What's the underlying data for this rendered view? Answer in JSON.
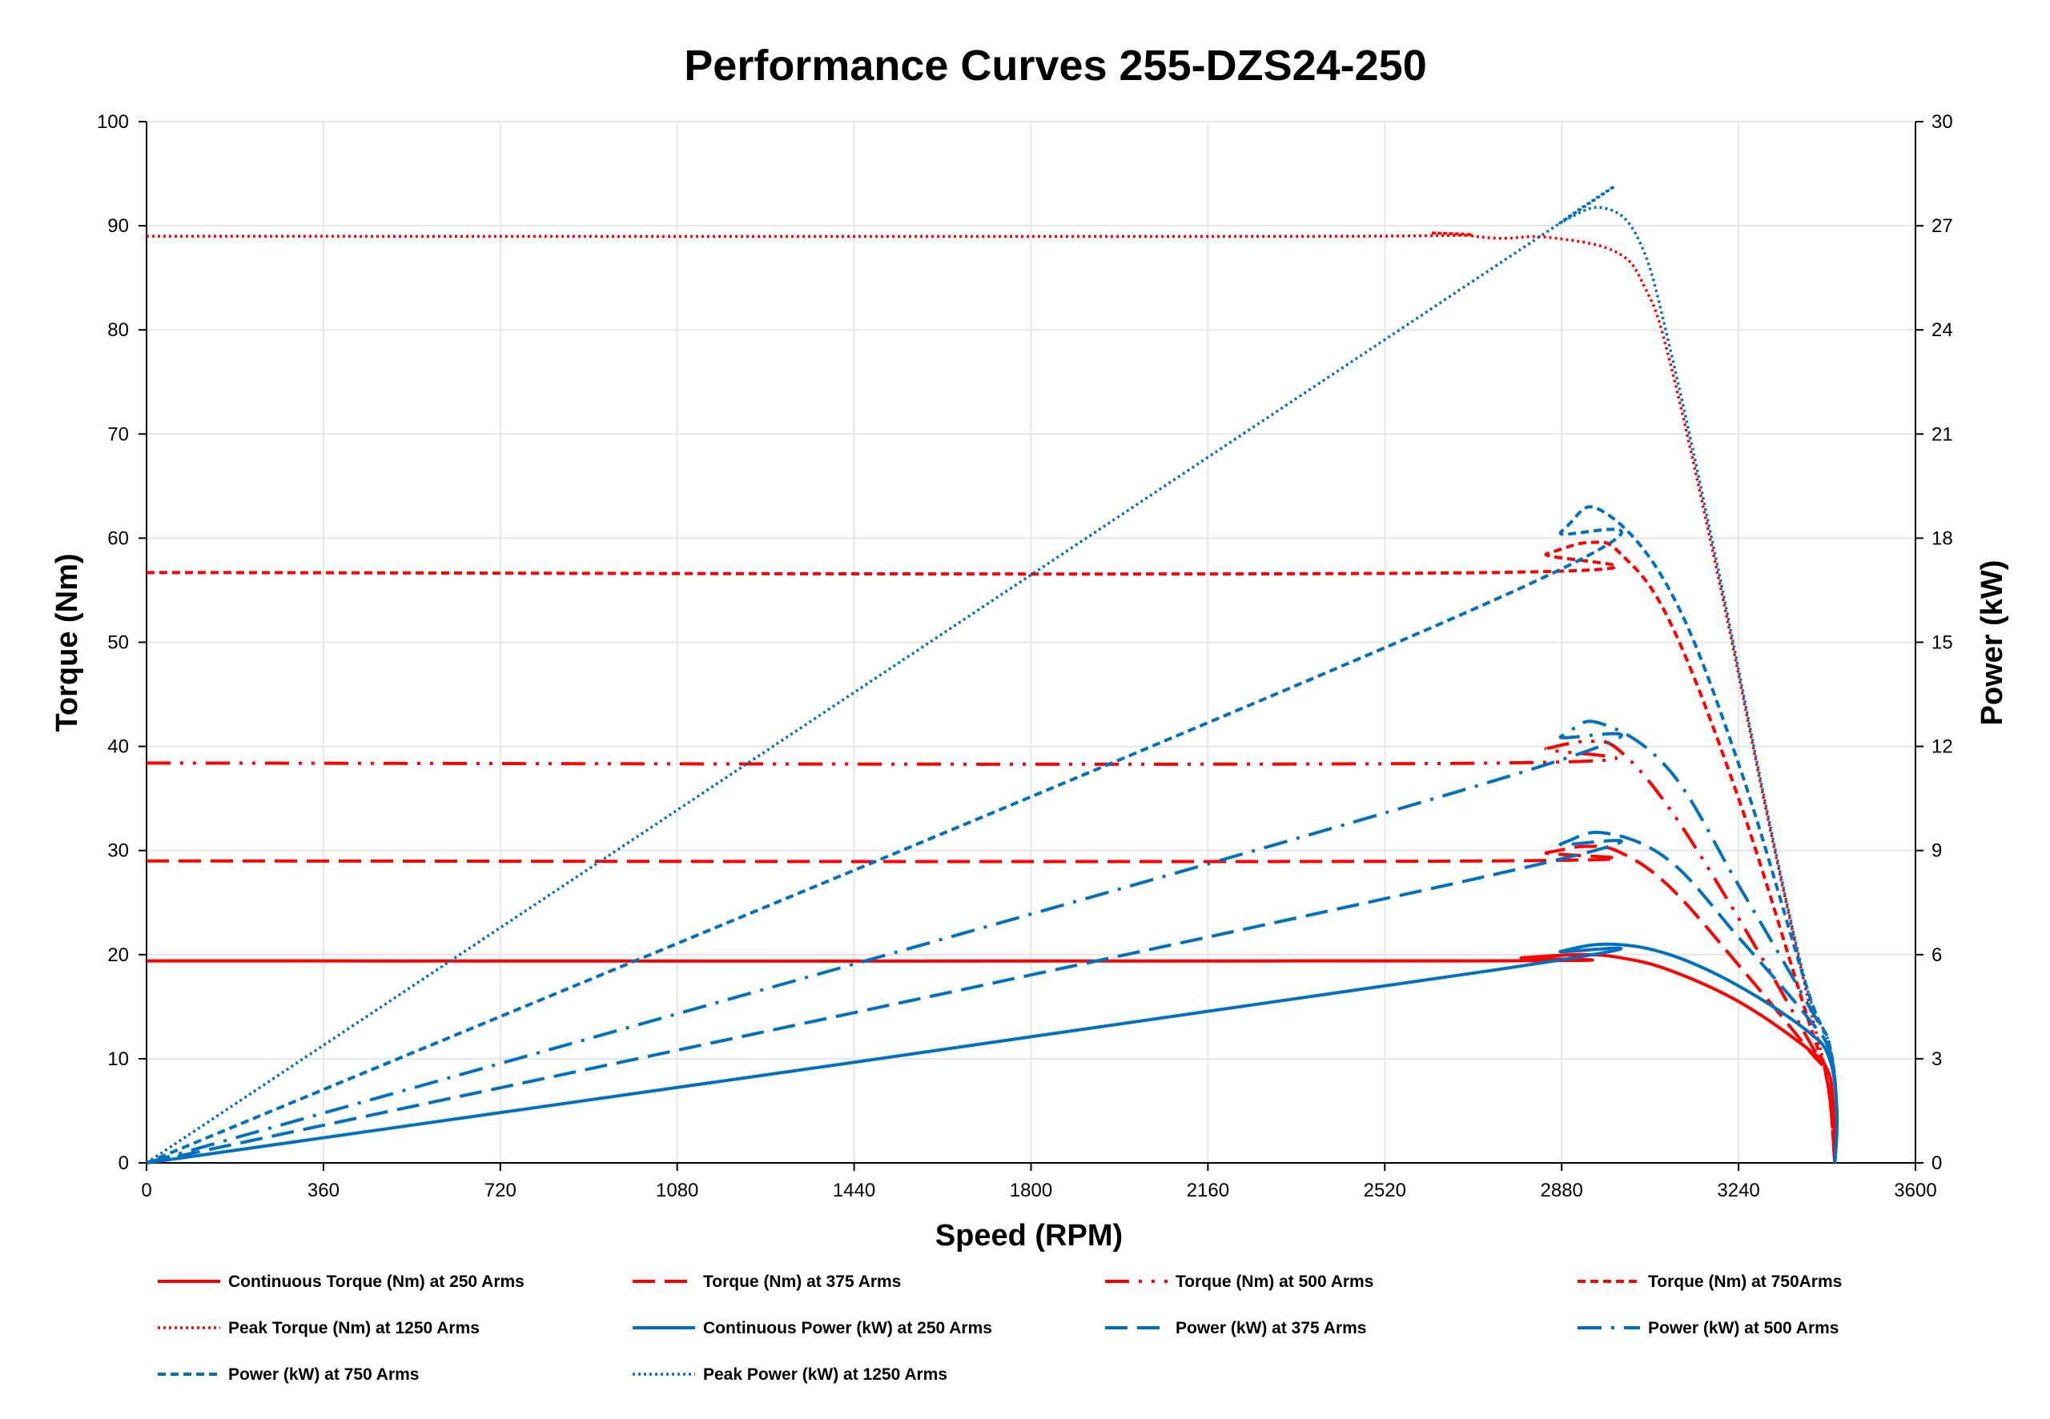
{
  "chart_data": {
    "type": "line",
    "title": "Performance Curves 255-DZS24-250",
    "xlabel": "Speed (RPM)",
    "ylabel": "Torque (Nm)",
    "y2label": "Power (kW)",
    "xlim": [
      0,
      3600
    ],
    "ylim": [
      0,
      100
    ],
    "y2lim": [
      0,
      30
    ],
    "xticks": [
      0,
      360,
      720,
      1080,
      1440,
      1800,
      2160,
      2520,
      2880,
      3240,
      3600
    ],
    "yticks": [
      0,
      10,
      20,
      30,
      40,
      50,
      60,
      70,
      80,
      90,
      100
    ],
    "y2ticks": [
      0,
      3,
      6,
      9,
      12,
      15,
      18,
      21,
      24,
      27,
      30
    ],
    "grid": true,
    "legend_position": "bottom",
    "colors": {
      "torque": "#ff0000",
      "power": "#0070c0"
    },
    "series": [
      {
        "name": "Continuous Torque (Nm) at 250 Arms",
        "axis": "left",
        "color": "#ff0000",
        "style": "solid",
        "points": [
          [
            0,
            19.4
          ],
          [
            2700,
            19.4
          ],
          [
            2800,
            19.7
          ],
          [
            2920,
            20
          ],
          [
            3000,
            19.7
          ],
          [
            3100,
            18.5
          ],
          [
            3240,
            15.5
          ],
          [
            3380,
            11
          ],
          [
            3420,
            9
          ],
          [
            3432,
            6
          ],
          [
            3436,
            0
          ]
        ]
      },
      {
        "name": "Torque (Nm) at 375 Arms",
        "axis": "left",
        "color": "#ff0000",
        "style": "longdash",
        "points": [
          [
            0,
            29
          ],
          [
            2740,
            29
          ],
          [
            2850,
            29.8
          ],
          [
            2930,
            30.4
          ],
          [
            3000,
            29.8
          ],
          [
            3100,
            26.5
          ],
          [
            3240,
            19
          ],
          [
            3380,
            11
          ],
          [
            3420,
            8
          ],
          [
            3436,
            0
          ]
        ]
      },
      {
        "name": "Torque (Nm) at 500 Arms",
        "axis": "left",
        "color": "#ff0000",
        "style": "dashdotdot",
        "points": [
          [
            0,
            38.4
          ],
          [
            2740,
            38.4
          ],
          [
            2850,
            39.8
          ],
          [
            2940,
            40.5
          ],
          [
            3000,
            39.5
          ],
          [
            3100,
            34
          ],
          [
            3240,
            23.5
          ],
          [
            3380,
            12
          ],
          [
            3420,
            8
          ],
          [
            3436,
            0
          ]
        ]
      },
      {
        "name": "Torque (Nm) at 750Arms",
        "axis": "left",
        "color": "#ff0000",
        "style": "shortdash",
        "points": [
          [
            0,
            56.7
          ],
          [
            2740,
            56.7
          ],
          [
            2850,
            58.5
          ],
          [
            2940,
            59.6
          ],
          [
            3000,
            58.5
          ],
          [
            3100,
            52
          ],
          [
            3240,
            35
          ],
          [
            3380,
            14
          ],
          [
            3420,
            8
          ],
          [
            3436,
            0
          ]
        ]
      },
      {
        "name": "Peak Torque (Nm) at 1250  Arms",
        "axis": "left",
        "color": "#ff0000",
        "style": "dotted",
        "points": [
          [
            0,
            89
          ],
          [
            2450,
            89
          ],
          [
            2620,
            89.3
          ],
          [
            2750,
            88.8
          ],
          [
            2850,
            88.9
          ],
          [
            2990,
            87.5
          ],
          [
            3050,
            84
          ],
          [
            3100,
            77
          ],
          [
            3200,
            56
          ],
          [
            3300,
            33
          ],
          [
            3380,
            16
          ],
          [
            3420,
            8
          ],
          [
            3436,
            0
          ]
        ]
      },
      {
        "name": "Continuous Power (kW) at 250 Arms",
        "axis": "right",
        "color": "#0070c0",
        "style": "solid",
        "points": [
          [
            0,
            0
          ],
          [
            2740,
            5.55
          ],
          [
            2880,
            6.1
          ],
          [
            2980,
            6.3
          ],
          [
            3100,
            6
          ],
          [
            3240,
            5.1
          ],
          [
            3380,
            3.8
          ],
          [
            3425,
            3
          ],
          [
            3440,
            1.5
          ],
          [
            3436,
            0
          ]
        ]
      },
      {
        "name": "Power (kW) at 375 Arms",
        "axis": "right",
        "color": "#0070c0",
        "style": "longdash",
        "points": [
          [
            0,
            0
          ],
          [
            2740,
            8.3
          ],
          [
            2880,
            9.2
          ],
          [
            2970,
            9.5
          ],
          [
            3100,
            8.7
          ],
          [
            3240,
            6.5
          ],
          [
            3380,
            4.2
          ],
          [
            3425,
            3.2
          ],
          [
            3440,
            1.5
          ],
          [
            3436,
            0
          ]
        ]
      },
      {
        "name": "Power (kW) at 500 Arms",
        "axis": "right",
        "color": "#0070c0",
        "style": "dashdot",
        "points": [
          [
            0,
            0
          ],
          [
            2740,
            11
          ],
          [
            2880,
            12.3
          ],
          [
            2960,
            12.66
          ],
          [
            3100,
            11.3
          ],
          [
            3240,
            8
          ],
          [
            3380,
            4.6
          ],
          [
            3425,
            3.3
          ],
          [
            3440,
            1.5
          ],
          [
            3436,
            0
          ]
        ]
      },
      {
        "name": "Power (kW) at 750 Arms",
        "axis": "right",
        "color": "#0070c0",
        "style": "shortdash",
        "points": [
          [
            0,
            0
          ],
          [
            2740,
            16.2
          ],
          [
            2880,
            18.2
          ],
          [
            2960,
            18.8
          ],
          [
            3100,
            16.5
          ],
          [
            3240,
            11.5
          ],
          [
            3380,
            5
          ],
          [
            3425,
            3.4
          ],
          [
            3440,
            1.5
          ],
          [
            3436,
            0
          ]
        ]
      },
      {
        "name": "Peak Power (kW) at 1250 Arms",
        "axis": "right",
        "color": "#0070c0",
        "style": "dotted",
        "points": [
          [
            0,
            0
          ],
          [
            2720,
            25.6
          ],
          [
            2880,
            27.1
          ],
          [
            2970,
            27.5
          ],
          [
            3040,
            26.5
          ],
          [
            3100,
            23.5
          ],
          [
            3200,
            17
          ],
          [
            3300,
            10
          ],
          [
            3380,
            5
          ],
          [
            3425,
            3.4
          ],
          [
            3440,
            1.5
          ],
          [
            3436,
            0
          ]
        ]
      }
    ]
  }
}
